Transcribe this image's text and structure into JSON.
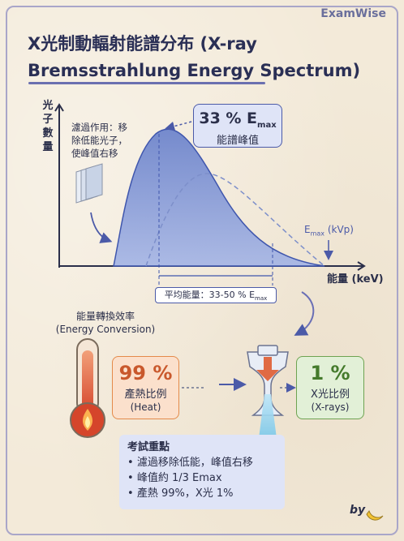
{
  "brand": "ExamWise",
  "title": {
    "line1": "X光制動輻射能譜分布 (X-ray",
    "line2": "Bremsstrahlung Energy Spectrum)"
  },
  "chart": {
    "ylabel": [
      "光",
      "子",
      "數",
      "量"
    ],
    "xlabel": "能量 (keV)",
    "filter_note": [
      "濾過作用：移",
      "除低能光子，",
      "使峰值右移"
    ],
    "peak": {
      "value": "33 % E",
      "value_sub": "max",
      "label": "能譜峰值"
    },
    "emax": {
      "text": "E",
      "sub": "max",
      "suffix": " (kVp)"
    },
    "average": {
      "text": "平均能量：33-50 % E",
      "sub": "max"
    }
  },
  "conversion": {
    "title": [
      "能量轉換效率",
      "(Energy Conversion)"
    ],
    "heat": {
      "value": "99 %",
      "label": "產熱比例",
      "sub": "(Heat)"
    },
    "xray": {
      "value": "1 %",
      "label": "X光比例",
      "sub": "(X-rays)"
    }
  },
  "key_points": {
    "title": "考試重點",
    "items": [
      "濾過移除低能，峰值右移",
      "峰值約 1/3 Emax",
      "產熱 99%，X光 1%"
    ]
  },
  "signature": "by",
  "colors": {
    "accent": "#4b5aa8",
    "spectrum_fill": "#7d94d6",
    "heat": "#e48a4a",
    "xray": "#6ea351",
    "panel": "#dfe4f7"
  }
}
